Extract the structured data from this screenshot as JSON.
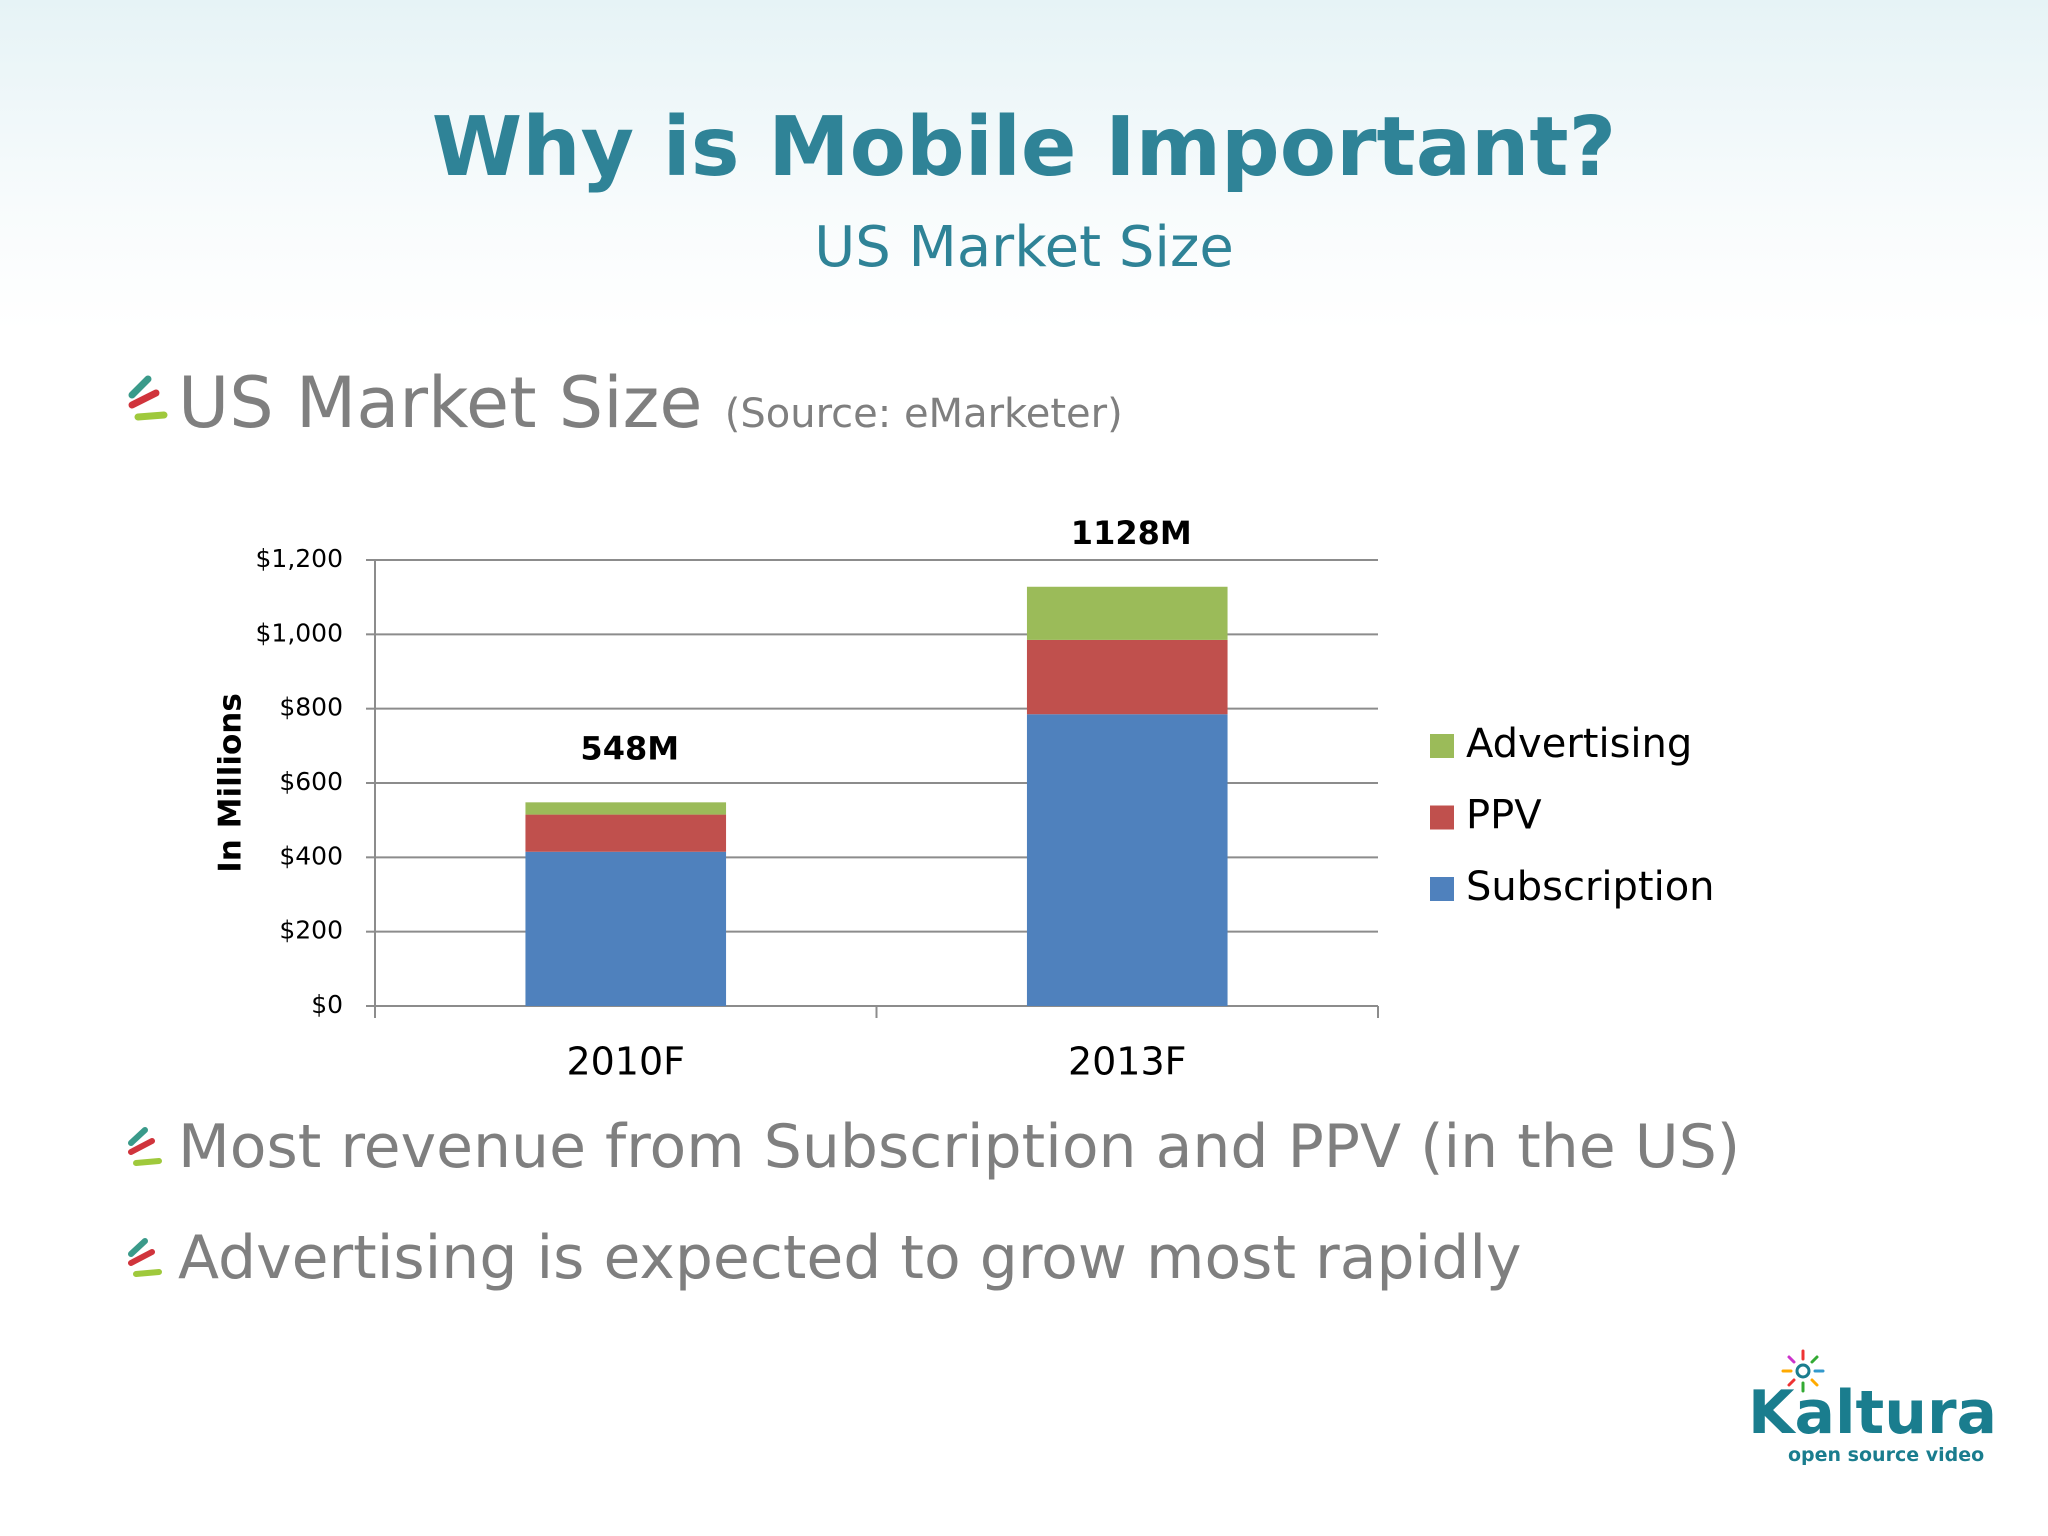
{
  "title": "Why is Mobile Important?",
  "subtitle": "US Market Size",
  "heading": "US Market Size",
  "heading_source": "(Source: eMarketer)",
  "bullets": [
    "Most revenue from Subscription and PPV (in the US)",
    "Advertising is expected to grow most rapidly"
  ],
  "logo": {
    "name": "Kaltura",
    "tagline": "open source video"
  },
  "chart_data": {
    "type": "stacked_bar",
    "y_label": "In Millions",
    "categories": [
      "2010F",
      "2013F"
    ],
    "series": [
      {
        "name": "Subscription",
        "color": "#4f81bd",
        "values": [
          415,
          785
        ]
      },
      {
        "name": "PPV",
        "color": "#c0504d",
        "values": [
          100,
          200
        ]
      },
      {
        "name": "Advertising",
        "color": "#9bbb59",
        "values": [
          33,
          143
        ]
      }
    ],
    "totals": {
      "values": [
        548,
        1128
      ],
      "value_labels": [
        "548M",
        "1128M"
      ]
    },
    "ylim": [
      0,
      1200
    ],
    "yticks": [
      {
        "value": 0,
        "label": "$0"
      },
      {
        "value": 200,
        "label": "$200"
      },
      {
        "value": 400,
        "label": "$400"
      },
      {
        "value": 600,
        "label": "$600"
      },
      {
        "value": 800,
        "label": "$800"
      },
      {
        "value": 1000,
        "label": "$1,000"
      },
      {
        "value": 1200,
        "label": "$1,200"
      }
    ],
    "grid": true,
    "legend": "right"
  }
}
